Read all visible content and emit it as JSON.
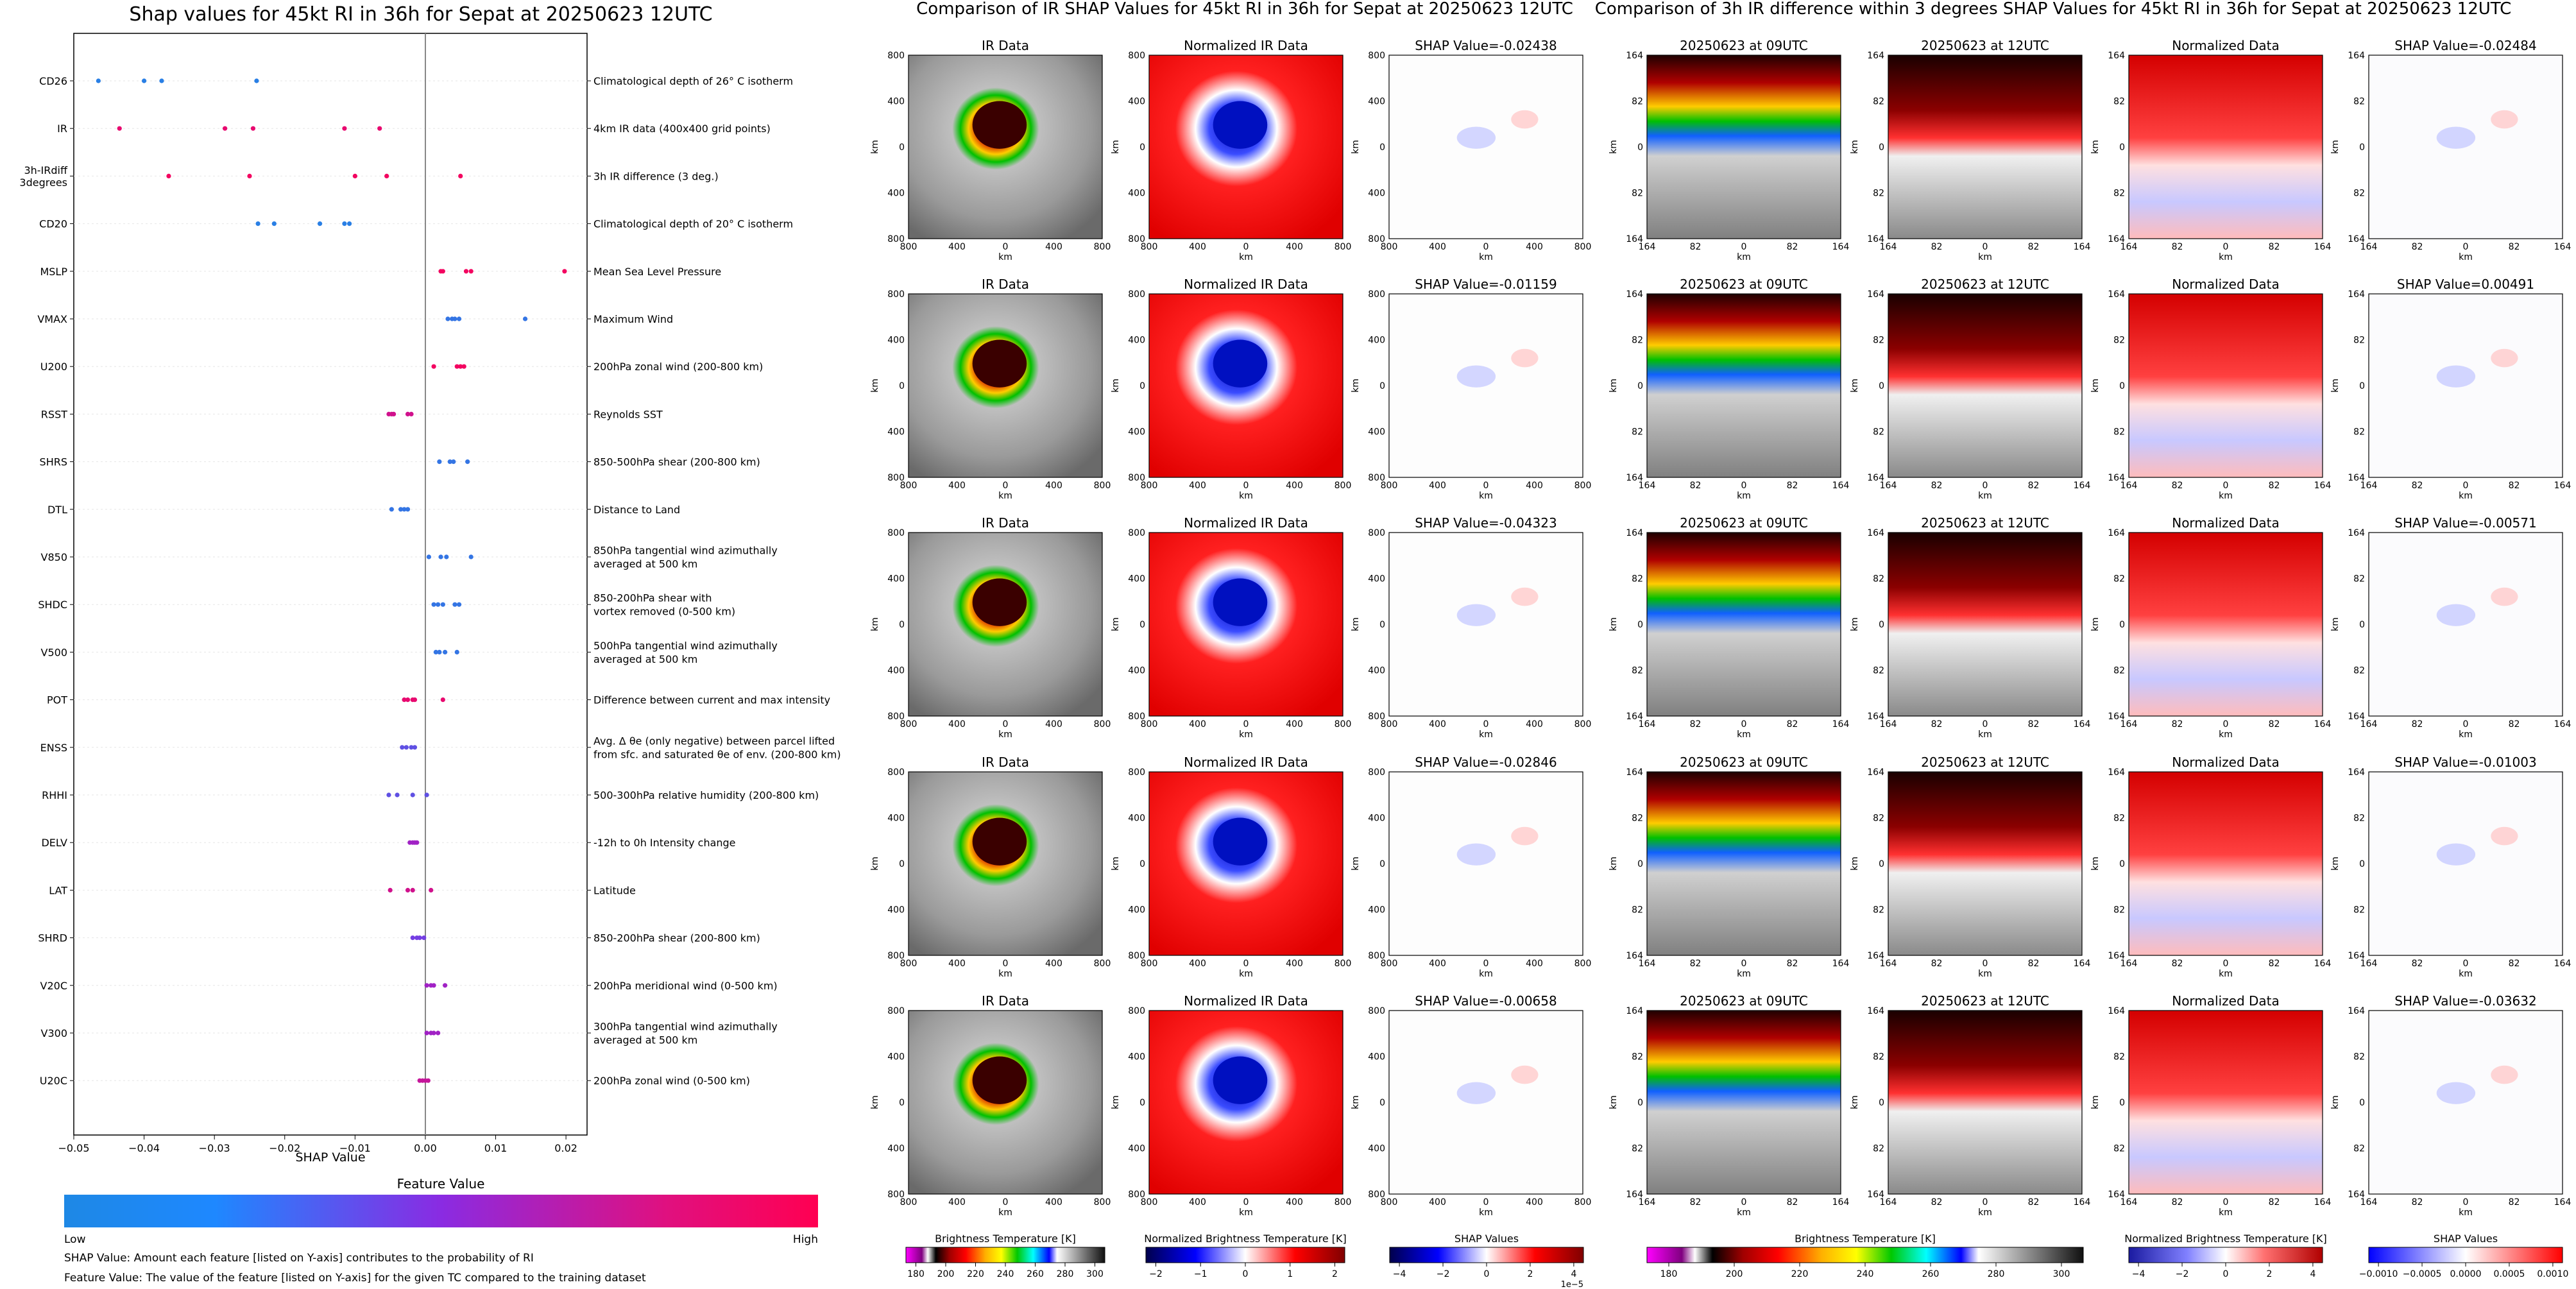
{
  "shap_summary": {
    "title": "Shap values for 45kt RI in 36h for Sepat at 20250623 12UTC",
    "xlabel": "SHAP Value",
    "legend_title": "Feature Value",
    "legend_low": "Low",
    "legend_high": "High",
    "note1": "SHAP Value: Amount each feature [listed on Y-axis] contributes to the probability of RI",
    "note2": "Feature Value: The value of the feature [listed on Y-axis] for the given TC compared to the training dataset",
    "colors": {
      "low": "#1e88e5",
      "mid": "#8a2be2",
      "high": "#ff0052"
    }
  },
  "ir_block": {
    "title": "Comparison of IR SHAP Values for 45kt RI in 36h for Sepat at 20250623 12UTC",
    "col_titles": [
      "IR Data",
      "Normalized IR Data"
    ],
    "ticks": [
      "800",
      "400",
      "0",
      "400",
      "800"
    ],
    "axis_label": "km",
    "colorbars": [
      {
        "label": "Brightness Temperature [K]",
        "ticks": [
          "180",
          "200",
          "220",
          "240",
          "260",
          "280",
          "300"
        ]
      },
      {
        "label": "Normalized Brightness Temperature [K]",
        "ticks": [
          "−2",
          "−1",
          "0",
          "1",
          "2"
        ]
      },
      {
        "label": "SHAP Values",
        "ticks": [
          "−4",
          "−2",
          "0",
          "2",
          "4"
        ],
        "offset": "1e−5"
      }
    ]
  },
  "diff_block": {
    "title": "Comparison of 3h IR difference within 3 degrees SHAP Values for 45kt RI in 36h for Sepat at 20250623 12UTC",
    "col_titles": [
      "20250623 at 09UTC",
      "20250623 at 12UTC",
      "Normalized Data"
    ],
    "ticks": [
      "164",
      "82",
      "0",
      "82",
      "164"
    ],
    "axis_label": "km",
    "colorbars": [
      {
        "label": "Brightness Temperature [K]",
        "ticks": [
          "180",
          "200",
          "220",
          "240",
          "260",
          "280",
          "300"
        ]
      },
      {
        "label": "Normalized Brightness Temperature [K]",
        "ticks": [
          "−4",
          "−2",
          "0",
          "2",
          "4"
        ]
      },
      {
        "label": "SHAP Values",
        "ticks": [
          "−0.0010",
          "−0.0005",
          "0.0000",
          "0.0005",
          "0.0010"
        ]
      }
    ]
  },
  "chart_data": [
    {
      "type": "scatter",
      "title": "Shap values for 45kt RI in 36h for Sepat at 20250623 12UTC",
      "xlabel": "SHAP Value",
      "xlim": [
        -0.05,
        0.023
      ],
      "xticks": [
        -0.05,
        -0.04,
        -0.03,
        -0.02,
        -0.01,
        0.0,
        0.01,
        0.02
      ],
      "grid": false,
      "features": [
        {
          "name": "CD26",
          "desc": "Climatological depth of 26° C isotherm",
          "points": [
            [
              -0.0465,
              0.05
            ],
            [
              -0.04,
              0.05
            ],
            [
              -0.0375,
              0.05
            ],
            [
              -0.024,
              0.05
            ]
          ]
        },
        {
          "name": "IR",
          "desc": "4km IR data (400x400 grid points)",
          "points": [
            [
              -0.0435,
              0.9
            ],
            [
              -0.0285,
              0.9
            ],
            [
              -0.0245,
              0.9
            ],
            [
              -0.0115,
              0.9
            ],
            [
              -0.0065,
              0.9
            ]
          ]
        },
        {
          "name": "3h-IRdiff\n3degrees",
          "desc": "3h IR difference (3 deg.)",
          "points": [
            [
              -0.0365,
              0.95
            ],
            [
              -0.025,
              0.95
            ],
            [
              -0.01,
              0.95
            ],
            [
              -0.0055,
              0.95
            ],
            [
              0.005,
              0.95
            ]
          ]
        },
        {
          "name": "CD20",
          "desc": "Climatological depth of 20° C isotherm",
          "points": [
            [
              -0.0238,
              0.05
            ],
            [
              -0.0215,
              0.05
            ],
            [
              -0.015,
              0.05
            ],
            [
              -0.0115,
              0.05
            ],
            [
              -0.0108,
              0.05
            ]
          ]
        },
        {
          "name": "MSLP",
          "desc": "Mean Sea Level Pressure",
          "points": [
            [
              0.0022,
              0.95
            ],
            [
              0.0025,
              0.95
            ],
            [
              0.0058,
              0.95
            ],
            [
              0.0065,
              0.95
            ],
            [
              0.0198,
              0.95
            ]
          ]
        },
        {
          "name": "VMAX",
          "desc": "Maximum Wind",
          "points": [
            [
              0.0032,
              0.1
            ],
            [
              0.0038,
              0.1
            ],
            [
              0.0042,
              0.1
            ],
            [
              0.0048,
              0.1
            ],
            [
              0.0142,
              0.1
            ]
          ]
        },
        {
          "name": "U200",
          "desc": "200hPa zonal wind (200-800 km)",
          "points": [
            [
              0.0012,
              0.95
            ],
            [
              0.0045,
              0.95
            ],
            [
              0.005,
              0.95
            ],
            [
              0.0055,
              0.95
            ]
          ]
        },
        {
          "name": "RSST",
          "desc": "Reynolds SST",
          "points": [
            [
              -0.0052,
              0.8
            ],
            [
              -0.0048,
              0.8
            ],
            [
              -0.0045,
              0.8
            ],
            [
              -0.0025,
              0.8
            ],
            [
              -0.002,
              0.8
            ]
          ]
        },
        {
          "name": "SHRS",
          "desc": "850-500hPa shear (200-800 km)",
          "points": [
            [
              0.002,
              0.1
            ],
            [
              0.0035,
              0.1
            ],
            [
              0.004,
              0.1
            ],
            [
              0.006,
              0.1
            ]
          ]
        },
        {
          "name": "DTL",
          "desc": "Distance to Land",
          "points": [
            [
              -0.0048,
              0.1
            ],
            [
              -0.0035,
              0.1
            ],
            [
              -0.003,
              0.1
            ],
            [
              -0.0025,
              0.1
            ]
          ]
        },
        {
          "name": "V850",
          "desc": "850hPa tangential wind azimuthally\naveraged at 500 km",
          "points": [
            [
              0.0005,
              0.1
            ],
            [
              0.0022,
              0.1
            ],
            [
              0.003,
              0.1
            ],
            [
              0.0065,
              0.1
            ]
          ]
        },
        {
          "name": "SHDC",
          "desc": "850-200hPa shear with\nvortex removed (0-500 km)",
          "points": [
            [
              0.0012,
              0.1
            ],
            [
              0.0018,
              0.1
            ],
            [
              0.0025,
              0.1
            ],
            [
              0.0042,
              0.1
            ],
            [
              0.0048,
              0.1
            ]
          ]
        },
        {
          "name": "V500",
          "desc": "500hPa tangential wind azimuthally\naveraged at 500 km",
          "points": [
            [
              0.0015,
              0.1
            ],
            [
              0.002,
              0.1
            ],
            [
              0.0028,
              0.1
            ],
            [
              0.0045,
              0.1
            ]
          ]
        },
        {
          "name": "POT",
          "desc": "Difference between current and max intensity",
          "points": [
            [
              -0.003,
              0.9
            ],
            [
              -0.0025,
              0.9
            ],
            [
              -0.0018,
              0.9
            ],
            [
              -0.0015,
              0.9
            ],
            [
              0.0025,
              0.9
            ]
          ]
        },
        {
          "name": "ENSS",
          "desc": "Avg. Δ θe (only negative) between parcel lifted\nfrom sfc. and saturated θe of env. (200-800 km)",
          "points": [
            [
              -0.0033,
              0.3
            ],
            [
              -0.0027,
              0.3
            ],
            [
              -0.002,
              0.3
            ],
            [
              -0.0015,
              0.3
            ]
          ]
        },
        {
          "name": "RHHI",
          "desc": "500-300hPa relative humidity (200-800 km)",
          "points": [
            [
              -0.0052,
              0.3
            ],
            [
              -0.004,
              0.3
            ],
            [
              -0.0018,
              0.3
            ],
            [
              0.0002,
              0.3
            ]
          ]
        },
        {
          "name": "DELV",
          "desc": "-12h to 0h Intensity change",
          "points": [
            [
              -0.0022,
              0.6
            ],
            [
              -0.0018,
              0.6
            ],
            [
              -0.0015,
              0.6
            ],
            [
              -0.0012,
              0.6
            ]
          ]
        },
        {
          "name": "LAT",
          "desc": "Latitude",
          "points": [
            [
              -0.005,
              0.8
            ],
            [
              -0.0025,
              0.8
            ],
            [
              -0.0018,
              0.8
            ],
            [
              0.0008,
              0.8
            ]
          ]
        },
        {
          "name": "SHRD",
          "desc": "850-200hPa shear (200-800 km)",
          "points": [
            [
              -0.0018,
              0.4
            ],
            [
              -0.0012,
              0.4
            ],
            [
              -0.0008,
              0.4
            ],
            [
              -0.0002,
              0.4
            ]
          ]
        },
        {
          "name": "V20C",
          "desc": "200hPa meridional wind (0-500 km)",
          "points": [
            [
              0.0002,
              0.6
            ],
            [
              0.0008,
              0.6
            ],
            [
              0.0012,
              0.6
            ],
            [
              0.0028,
              0.6
            ]
          ]
        },
        {
          "name": "V300",
          "desc": "300hPa tangential wind azimuthally\naveraged at 500 km",
          "points": [
            [
              0.0002,
              0.6
            ],
            [
              0.0008,
              0.6
            ],
            [
              0.0012,
              0.6
            ],
            [
              0.0018,
              0.6
            ]
          ]
        },
        {
          "name": "U20C",
          "desc": "200hPa zonal wind (0-500 km)",
          "points": [
            [
              -0.0008,
              0.75
            ],
            [
              -0.0004,
              0.75
            ],
            [
              0.0,
              0.75
            ],
            [
              0.0004,
              0.75
            ]
          ]
        }
      ]
    },
    {
      "type": "heatmap",
      "title": "Comparison of IR SHAP Values for 45kt RI in 36h for Sepat at 20250623 12UTC",
      "shap_titles": [
        "SHAP Value=-0.02438",
        "SHAP Value=-0.01159",
        "SHAP Value=-0.04323",
        "SHAP Value=-0.02846",
        "SHAP Value=-0.00658"
      ]
    },
    {
      "type": "heatmap",
      "title": "Comparison of 3h IR difference within 3 degrees SHAP Values for 45kt RI in 36h for Sepat at 20250623 12UTC",
      "shap_titles": [
        "SHAP Value=-0.02484",
        "SHAP Value=0.00491",
        "SHAP Value=-0.00571",
        "SHAP Value=-0.01003",
        "SHAP Value=-0.03632"
      ]
    }
  ]
}
